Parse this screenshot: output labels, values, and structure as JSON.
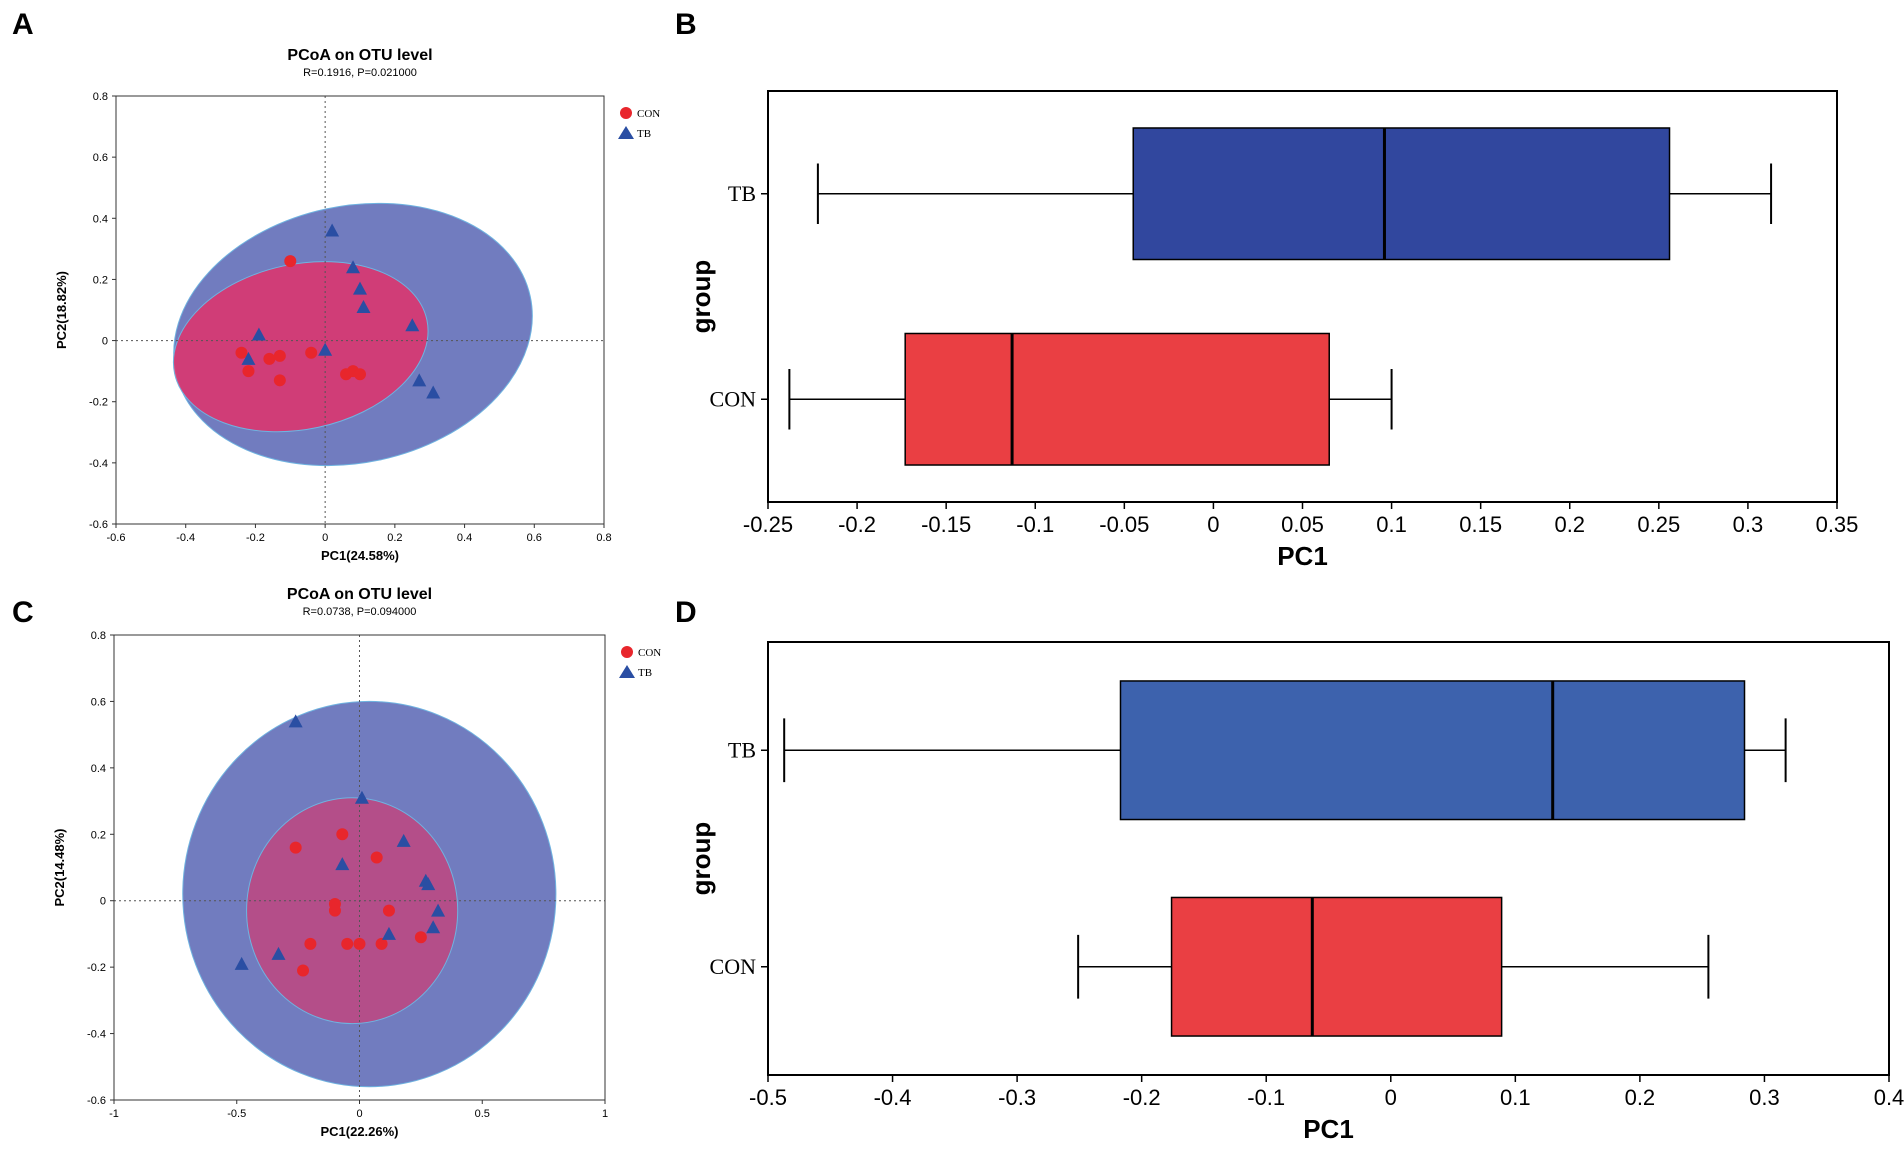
{
  "panels": {
    "a": "A",
    "b": "B",
    "c": "C",
    "d": "D"
  },
  "chart_data": [
    {
      "id": "A",
      "type": "scatter",
      "title": "PCoA on OTU level",
      "subtitle": "R=0.1916, P=0.021000",
      "xlabel": "PC1(24.58%)",
      "ylabel": "PC2(18.82%)",
      "xlim": [
        -0.6,
        0.8
      ],
      "ylim": [
        -0.6,
        0.8
      ],
      "xticks": [
        "-0.6",
        "-0.4",
        "-0.2",
        "0",
        "0.2",
        "0.4",
        "0.6",
        "0.8"
      ],
      "yticks": [
        "-0.6",
        "-0.4",
        "-0.2",
        "0",
        "0.2",
        "0.4",
        "0.6",
        "0.8"
      ],
      "legend": [
        {
          "label": "CON",
          "marker": "circle",
          "color": "#e8262c"
        },
        {
          "label": "TB",
          "marker": "triangle",
          "color": "#2a4ea3"
        }
      ],
      "ellipses": [
        {
          "group": "TB",
          "cx": 0.08,
          "cy": 0.02,
          "rx": 0.52,
          "ry": 0.42,
          "angle": -12,
          "color": "#5865b4"
        },
        {
          "group": "CON",
          "cx": -0.07,
          "cy": -0.02,
          "rx": 0.37,
          "ry": 0.27,
          "angle": -12,
          "color": "#e0326a"
        }
      ],
      "series": [
        {
          "name": "CON",
          "points": [
            [
              -0.1,
              0.26
            ],
            [
              -0.24,
              -0.04
            ],
            [
              -0.22,
              -0.1
            ],
            [
              -0.16,
              -0.06
            ],
            [
              -0.13,
              -0.05
            ],
            [
              -0.13,
              -0.13
            ],
            [
              -0.04,
              -0.04
            ],
            [
              0.06,
              -0.11
            ],
            [
              0.08,
              -0.1
            ],
            [
              0.1,
              -0.11
            ]
          ]
        },
        {
          "name": "TB",
          "points": [
            [
              0.02,
              0.36
            ],
            [
              0.08,
              0.24
            ],
            [
              0.1,
              0.17
            ],
            [
              0.11,
              0.11
            ],
            [
              0.25,
              0.05
            ],
            [
              -0.19,
              0.02
            ],
            [
              -0.22,
              -0.06
            ],
            [
              0.0,
              -0.03
            ],
            [
              0.27,
              -0.13
            ],
            [
              0.31,
              -0.17
            ]
          ]
        }
      ]
    },
    {
      "id": "B",
      "type": "boxplot",
      "xlabel": "PC1",
      "ylabel": "group",
      "xlim": [
        -0.25,
        0.35
      ],
      "xticks": [
        "-0.25",
        "-0.2",
        "-0.15",
        "-0.1",
        "-0.05",
        "0",
        "0.05",
        "0.1",
        "0.15",
        "0.2",
        "0.25",
        "0.3",
        "0.35"
      ],
      "categories": [
        "TB",
        "CON"
      ],
      "boxes": [
        {
          "name": "TB",
          "min": -0.222,
          "q1": -0.045,
          "median": 0.096,
          "q3": 0.256,
          "max": 0.313,
          "color": "#31479e"
        },
        {
          "name": "CON",
          "min": -0.238,
          "q1": -0.173,
          "median": -0.113,
          "q3": 0.065,
          "max": 0.1,
          "color": "#ea3f43"
        }
      ]
    },
    {
      "id": "C",
      "type": "scatter",
      "title": "PCoA on OTU level",
      "subtitle": "R=0.0738, P=0.094000",
      "xlabel": "PC1(22.26%)",
      "ylabel": "PC2(14.48%)",
      "xlim": [
        -1,
        1
      ],
      "ylim": [
        -0.6,
        0.8
      ],
      "xticks": [
        "-1",
        "-0.5",
        "0",
        "0.5",
        "1"
      ],
      "yticks": [
        "-0.6",
        "-0.4",
        "-0.2",
        "0",
        "0.2",
        "0.4",
        "0.6",
        "0.8"
      ],
      "legend": [
        {
          "label": "CON",
          "marker": "circle",
          "color": "#e8262c"
        },
        {
          "label": "TB",
          "marker": "triangle",
          "color": "#2a4ea3"
        }
      ],
      "ellipses": [
        {
          "group": "TB",
          "cx": 0.04,
          "cy": 0.02,
          "rx": 0.76,
          "ry": 0.58,
          "angle": 0,
          "color": "#5865b4"
        },
        {
          "group": "CON",
          "cx": -0.03,
          "cy": -0.03,
          "rx": 0.43,
          "ry": 0.34,
          "angle": 0,
          "color": "#c0467f"
        }
      ],
      "series": [
        {
          "name": "CON",
          "points": [
            [
              -0.26,
              0.16
            ],
            [
              -0.07,
              0.2
            ],
            [
              0.07,
              0.13
            ],
            [
              -0.1,
              -0.01
            ],
            [
              -0.1,
              -0.03
            ],
            [
              0.12,
              -0.03
            ],
            [
              -0.2,
              -0.13
            ],
            [
              -0.05,
              -0.13
            ],
            [
              0.0,
              -0.13
            ],
            [
              0.09,
              -0.13
            ],
            [
              0.25,
              -0.11
            ],
            [
              -0.23,
              -0.21
            ]
          ]
        },
        {
          "name": "TB",
          "points": [
            [
              -0.26,
              0.54
            ],
            [
              0.01,
              0.31
            ],
            [
              0.18,
              0.18
            ],
            [
              -0.07,
              0.11
            ],
            [
              0.27,
              0.06
            ],
            [
              0.28,
              0.05
            ],
            [
              0.32,
              -0.03
            ],
            [
              0.3,
              -0.08
            ],
            [
              0.12,
              -0.1
            ],
            [
              -0.33,
              -0.16
            ],
            [
              -0.48,
              -0.19
            ]
          ]
        }
      ]
    },
    {
      "id": "D",
      "type": "boxplot",
      "xlabel": "PC1",
      "ylabel": "group",
      "xlim": [
        -0.5,
        0.4
      ],
      "xticks": [
        "-0.5",
        "-0.4",
        "-0.3",
        "-0.2",
        "-0.1",
        "0",
        "0.1",
        "0.2",
        "0.3",
        "0.4"
      ],
      "categories": [
        "TB",
        "CON"
      ],
      "boxes": [
        {
          "name": "TB",
          "min": -0.487,
          "q1": -0.217,
          "median": 0.13,
          "q3": 0.284,
          "max": 0.317,
          "color": "#3d62ad"
        },
        {
          "name": "CON",
          "min": -0.251,
          "q1": -0.176,
          "median": -0.063,
          "q3": 0.089,
          "max": 0.255,
          "color": "#ea3f43"
        }
      ]
    }
  ]
}
